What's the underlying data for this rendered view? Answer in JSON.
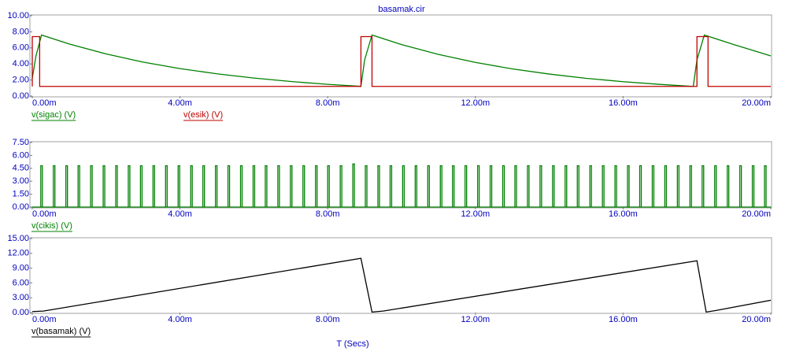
{
  "chart_data": [
    {
      "type": "line",
      "title": "basamak.cir",
      "xlim": [
        0,
        20
      ],
      "ylim": [
        0,
        10
      ],
      "xticks": [
        {
          "value": 0,
          "label": "0.00m"
        },
        {
          "value": 4,
          "label": "4.00m"
        },
        {
          "value": 8,
          "label": "8.00m"
        },
        {
          "value": 12,
          "label": "12.00m"
        },
        {
          "value": 16,
          "label": "16.00m"
        },
        {
          "value": 20,
          "label": "20.00m"
        }
      ],
      "yticks": [
        {
          "value": 0,
          "label": "0.00"
        },
        {
          "value": 2,
          "label": "2.00"
        },
        {
          "value": 4,
          "label": "4.00"
        },
        {
          "value": 6,
          "label": "6.00"
        },
        {
          "value": 8,
          "label": "8.00"
        },
        {
          "value": 10,
          "label": "10.00"
        }
      ],
      "series": [
        {
          "name": "v(sigac) (V)",
          "color": "#008000",
          "x": [
            0,
            0.1,
            0.25,
            1,
            2,
            3,
            4,
            5,
            6,
            7,
            8,
            8.9,
            9.0,
            9.2,
            10,
            11,
            12,
            13,
            14,
            15,
            16,
            17,
            17.9,
            18.0,
            18.2,
            19,
            20
          ],
          "values": [
            2.2,
            5.0,
            7.6,
            6.48,
            5.24,
            4.23,
            3.42,
            2.77,
            2.24,
            1.81,
            1.46,
            1.21,
            4.5,
            7.6,
            6.41,
            5.18,
            4.19,
            3.38,
            2.74,
            2.21,
            1.79,
            1.45,
            1.2,
            4.5,
            7.6,
            6.41,
            5.0
          ]
        },
        {
          "name": "v(esik) (V)",
          "color": "#c00000",
          "x": [
            0,
            0,
            0.2,
            0.2,
            8.9,
            8.9,
            9.2,
            9.2,
            18.0,
            18.0,
            18.3,
            18.3,
            20
          ],
          "values": [
            1.2,
            7.4,
            7.4,
            1.2,
            1.2,
            7.4,
            7.4,
            1.2,
            1.2,
            7.4,
            7.4,
            1.2,
            1.2
          ]
        }
      ]
    },
    {
      "type": "pulse",
      "xlim": [
        0,
        20
      ],
      "ylim": [
        0,
        7.5
      ],
      "xticks": [
        {
          "value": 0,
          "label": "0.00m"
        },
        {
          "value": 4,
          "label": "4.00m"
        },
        {
          "value": 8,
          "label": "8.00m"
        },
        {
          "value": 12,
          "label": "12.00m"
        },
        {
          "value": 16,
          "label": "16.00m"
        },
        {
          "value": 20,
          "label": "20.00m"
        }
      ],
      "yticks": [
        {
          "value": 0,
          "label": "0.00"
        },
        {
          "value": 1.5,
          "label": "1.50"
        },
        {
          "value": 3,
          "label": "3.00"
        },
        {
          "value": 4.5,
          "label": "4.50"
        },
        {
          "value": 6,
          "label": "6.00"
        },
        {
          "value": 7.5,
          "label": "7.50"
        }
      ],
      "series": [
        {
          "name": "v(cikis) (V)",
          "color": "#008000",
          "x": [
            0.23,
            0.57,
            0.91,
            1.24,
            1.58,
            1.92,
            2.26,
            2.6,
            2.93,
            3.27,
            3.61,
            3.95,
            4.29,
            4.62,
            4.96,
            5.3,
            5.64,
            5.98,
            6.31,
            6.65,
            6.99,
            7.33,
            7.67,
            8.0,
            8.34,
            8.68,
            9.02,
            9.36,
            9.69,
            10.03,
            10.37,
            10.71,
            11.05,
            11.38,
            11.72,
            12.06,
            12.4,
            12.74,
            13.07,
            13.41,
            13.75,
            14.09,
            14.43,
            14.76,
            15.1,
            15.44,
            15.78,
            16.12,
            16.45,
            16.79,
            17.13,
            17.47,
            17.81,
            18.14,
            18.48,
            18.82,
            19.16,
            19.5,
            19.83
          ],
          "values": [
            4.8,
            4.8,
            4.8,
            4.8,
            4.8,
            4.8,
            4.8,
            4.8,
            4.8,
            4.8,
            4.8,
            4.8,
            4.8,
            4.8,
            4.8,
            4.8,
            4.8,
            4.8,
            4.8,
            4.8,
            4.8,
            4.8,
            4.8,
            4.8,
            4.8,
            5.0,
            4.8,
            4.8,
            4.8,
            4.8,
            4.8,
            4.8,
            4.8,
            4.8,
            4.8,
            4.8,
            4.8,
            4.8,
            4.8,
            4.8,
            4.8,
            4.8,
            4.8,
            4.8,
            4.8,
            4.8,
            4.8,
            4.8,
            4.8,
            4.8,
            4.8,
            4.8,
            4.8,
            4.8,
            4.8,
            4.8,
            4.8,
            4.8,
            4.8
          ]
        }
      ]
    },
    {
      "type": "line",
      "x_label": "T (Secs)",
      "xlim": [
        0,
        20
      ],
      "ylim": [
        0,
        15
      ],
      "xticks": [
        {
          "value": 0,
          "label": "0.00m"
        },
        {
          "value": 4,
          "label": "4.00m"
        },
        {
          "value": 8,
          "label": "8.00m"
        },
        {
          "value": 12,
          "label": "12.00m"
        },
        {
          "value": 16,
          "label": "16.00m"
        },
        {
          "value": 20,
          "label": "20.00m"
        }
      ],
      "yticks": [
        {
          "value": 0,
          "label": "0.00"
        },
        {
          "value": 3,
          "label": "3.00"
        },
        {
          "value": 6,
          "label": "6.00"
        },
        {
          "value": 9,
          "label": "9.00"
        },
        {
          "value": 12,
          "label": "12.00"
        },
        {
          "value": 15,
          "label": "15.00"
        }
      ],
      "series": [
        {
          "name": "v(basamak) (V)",
          "color": "#000000",
          "x": [
            0,
            0.3,
            8.9,
            9.2,
            9.5,
            18.0,
            18.25,
            18.5,
            20
          ],
          "values": [
            0.2,
            0.3,
            11.0,
            0.1,
            0.3,
            10.5,
            0.1,
            0.4,
            2.5
          ]
        }
      ]
    }
  ]
}
